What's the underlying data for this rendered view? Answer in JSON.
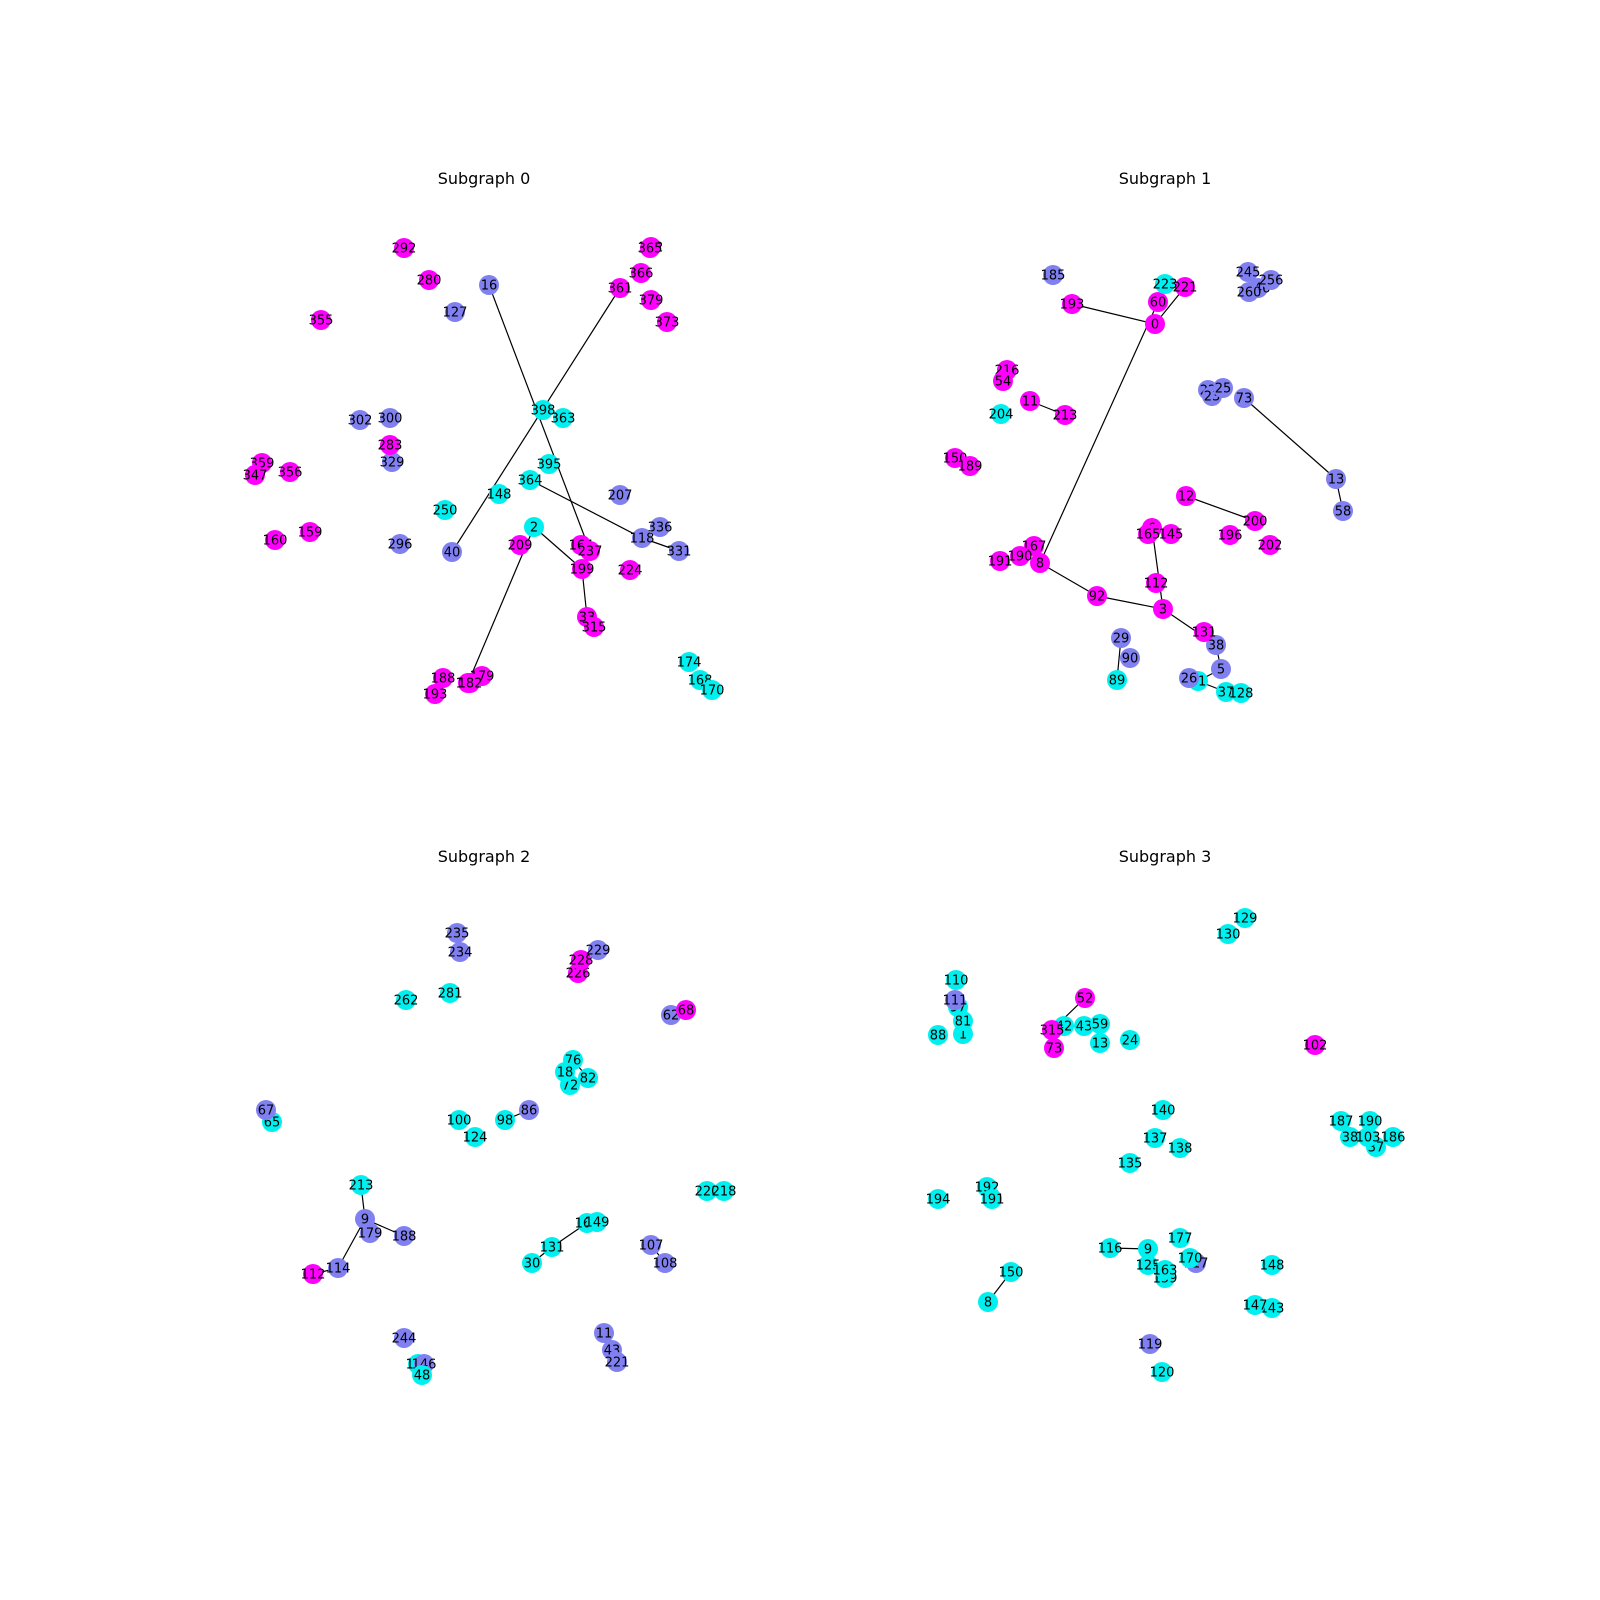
{
  "figure": {
    "panels": [
      {
        "title": "Subgraph 0",
        "nodes": [
          {
            "id": "2"
          },
          {
            "id": "199"
          },
          {
            "id": "118"
          },
          {
            "id": "33"
          },
          {
            "id": "280"
          },
          {
            "id": "366"
          },
          {
            "id": "395"
          },
          {
            "id": "174"
          },
          {
            "id": "179"
          },
          {
            "id": "159"
          },
          {
            "id": "356"
          },
          {
            "id": "300"
          },
          {
            "id": "40"
          },
          {
            "id": "16"
          },
          {
            "id": "331"
          },
          {
            "id": "355"
          },
          {
            "id": "359"
          },
          {
            "id": "302"
          },
          {
            "id": "363"
          },
          {
            "id": "364"
          },
          {
            "id": "292"
          },
          {
            "id": "382"
          },
          {
            "id": "398"
          },
          {
            "id": "379"
          },
          {
            "id": "373"
          },
          {
            "id": "347"
          },
          {
            "id": "148"
          },
          {
            "id": "193"
          },
          {
            "id": "186"
          },
          {
            "id": "207"
          },
          {
            "id": "336"
          },
          {
            "id": "365"
          },
          {
            "id": "168"
          },
          {
            "id": "127"
          },
          {
            "id": "164"
          },
          {
            "id": "160"
          },
          {
            "id": "188"
          },
          {
            "id": "237"
          },
          {
            "id": "224"
          },
          {
            "id": "182"
          },
          {
            "id": "296"
          },
          {
            "id": "329"
          },
          {
            "id": "209"
          },
          {
            "id": "250"
          },
          {
            "id": "170"
          },
          {
            "id": "361"
          },
          {
            "id": "283"
          },
          {
            "id": "315"
          }
        ]
      },
      {
        "title": "Subgraph 1",
        "nodes": [
          {
            "id": "221"
          },
          {
            "id": "193"
          },
          {
            "id": "0"
          },
          {
            "id": "60"
          },
          {
            "id": "11"
          },
          {
            "id": "13"
          },
          {
            "id": "8"
          },
          {
            "id": "92"
          },
          {
            "id": "3"
          },
          {
            "id": "12"
          },
          {
            "id": "6"
          },
          {
            "id": "38"
          },
          {
            "id": "5"
          },
          {
            "id": "81"
          },
          {
            "id": "89"
          },
          {
            "id": "29"
          },
          {
            "id": "26"
          },
          {
            "id": "37"
          },
          {
            "id": "128"
          },
          {
            "id": "167"
          },
          {
            "id": "200"
          },
          {
            "id": "202"
          },
          {
            "id": "196"
          },
          {
            "id": "213"
          },
          {
            "id": "216"
          },
          {
            "id": "54"
          },
          {
            "id": "204"
          },
          {
            "id": "150"
          },
          {
            "id": "189"
          },
          {
            "id": "185"
          },
          {
            "id": "245"
          },
          {
            "id": "246"
          },
          {
            "id": "260"
          },
          {
            "id": "256"
          },
          {
            "id": "73"
          },
          {
            "id": "22"
          },
          {
            "id": "23"
          },
          {
            "id": "25"
          },
          {
            "id": "58"
          },
          {
            "id": "131"
          },
          {
            "id": "112"
          },
          {
            "id": "165"
          },
          {
            "id": "145"
          },
          {
            "id": "90"
          },
          {
            "id": "190"
          },
          {
            "id": "191"
          },
          {
            "id": "223"
          }
        ]
      },
      {
        "title": "Subgraph 2",
        "nodes": [
          {
            "id": "9"
          },
          {
            "id": "86"
          },
          {
            "id": "100"
          },
          {
            "id": "11"
          },
          {
            "id": "43"
          },
          {
            "id": "221"
          },
          {
            "id": "65"
          },
          {
            "id": "67"
          },
          {
            "id": "107"
          },
          {
            "id": "114"
          },
          {
            "id": "112"
          },
          {
            "id": "160"
          },
          {
            "id": "146"
          },
          {
            "id": "244"
          },
          {
            "id": "226"
          },
          {
            "id": "228"
          },
          {
            "id": "229"
          },
          {
            "id": "262"
          },
          {
            "id": "281"
          },
          {
            "id": "30"
          },
          {
            "id": "131"
          },
          {
            "id": "161"
          },
          {
            "id": "220"
          },
          {
            "id": "218"
          },
          {
            "id": "62"
          },
          {
            "id": "68"
          },
          {
            "id": "188"
          },
          {
            "id": "179"
          },
          {
            "id": "213"
          },
          {
            "id": "124"
          },
          {
            "id": "98"
          },
          {
            "id": "82"
          },
          {
            "id": "76"
          },
          {
            "id": "72"
          },
          {
            "id": "18"
          },
          {
            "id": "108"
          },
          {
            "id": "149"
          },
          {
            "id": "48"
          },
          {
            "id": "235"
          },
          {
            "id": "234"
          }
        ]
      },
      {
        "title": "Subgraph 3",
        "nodes": [
          {
            "id": "9"
          },
          {
            "id": "150"
          },
          {
            "id": "119"
          },
          {
            "id": "130"
          },
          {
            "id": "194"
          },
          {
            "id": "192"
          },
          {
            "id": "191"
          },
          {
            "id": "186"
          },
          {
            "id": "37"
          },
          {
            "id": "187"
          },
          {
            "id": "190"
          },
          {
            "id": "38"
          },
          {
            "id": "103"
          },
          {
            "id": "148"
          },
          {
            "id": "143"
          },
          {
            "id": "135"
          },
          {
            "id": "137"
          },
          {
            "id": "138"
          },
          {
            "id": "42"
          },
          {
            "id": "43"
          },
          {
            "id": "59"
          },
          {
            "id": "13"
          },
          {
            "id": "97"
          },
          {
            "id": "1"
          },
          {
            "id": "81"
          },
          {
            "id": "88"
          },
          {
            "id": "110"
          },
          {
            "id": "111"
          },
          {
            "id": "102"
          },
          {
            "id": "129"
          },
          {
            "id": "117"
          },
          {
            "id": "125"
          },
          {
            "id": "159"
          },
          {
            "id": "163"
          },
          {
            "id": "116"
          },
          {
            "id": "170"
          },
          {
            "id": "177"
          },
          {
            "id": "120"
          },
          {
            "id": "147"
          },
          {
            "id": "8"
          },
          {
            "id": "315"
          },
          {
            "id": "73"
          },
          {
            "id": "52"
          },
          {
            "id": "24"
          },
          {
            "id": "140"
          }
        ]
      }
    ]
  }
}
